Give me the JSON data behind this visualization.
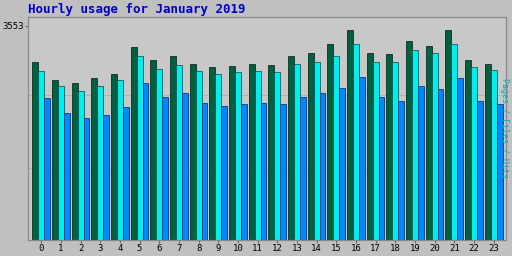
{
  "title": "Hourly usage for January 2019",
  "ylabel_right": "Pages / Files / Hits",
  "ytick_label": "3553",
  "hours": [
    0,
    1,
    2,
    3,
    4,
    5,
    6,
    7,
    8,
    9,
    10,
    11,
    12,
    13,
    14,
    15,
    16,
    17,
    18,
    19,
    20,
    21,
    22,
    23
  ],
  "pages": [
    2950,
    2650,
    2600,
    2680,
    2750,
    3200,
    2980,
    3050,
    2920,
    2870,
    2880,
    2920,
    2900,
    3060,
    3110,
    3250,
    3480,
    3100,
    3080,
    3300,
    3220,
    3480,
    2990,
    2920
  ],
  "files": [
    2800,
    2550,
    2480,
    2560,
    2650,
    3050,
    2840,
    2900,
    2800,
    2750,
    2780,
    2800,
    2780,
    2920,
    2960,
    3060,
    3250,
    2950,
    2950,
    3150,
    3100,
    3250,
    2870,
    2820
  ],
  "hits": [
    2350,
    2100,
    2020,
    2080,
    2200,
    2600,
    2380,
    2440,
    2280,
    2220,
    2260,
    2280,
    2250,
    2380,
    2440,
    2520,
    2700,
    2380,
    2300,
    2560,
    2500,
    2680,
    2300,
    2250
  ],
  "color_pages": "#006040",
  "color_files": "#00EEEE",
  "color_hits": "#0088FF",
  "bg_color": "#C0C0C0",
  "plot_bg": "#C8C8C8",
  "border_color": "#888888",
  "title_color": "#0000CC",
  "ylabel_color": "#00AAAA",
  "ymax": 3700,
  "ymin": 0,
  "bar_width": 0.3,
  "title_fontsize": 9,
  "tick_fontsize": 6.5
}
